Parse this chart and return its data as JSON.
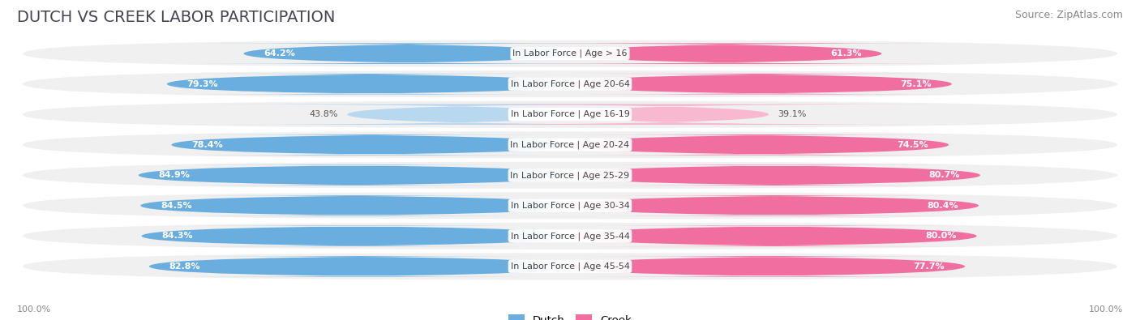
{
  "title": "DUTCH VS CREEK LABOR PARTICIPATION",
  "source": "Source: ZipAtlas.com",
  "categories": [
    "In Labor Force | Age > 16",
    "In Labor Force | Age 20-64",
    "In Labor Force | Age 16-19",
    "In Labor Force | Age 20-24",
    "In Labor Force | Age 25-29",
    "In Labor Force | Age 30-34",
    "In Labor Force | Age 35-44",
    "In Labor Force | Age 45-54"
  ],
  "dutch_values": [
    64.2,
    79.3,
    43.8,
    78.4,
    84.9,
    84.5,
    84.3,
    82.8
  ],
  "creek_values": [
    61.3,
    75.1,
    39.1,
    74.5,
    80.7,
    80.4,
    80.0,
    77.7
  ],
  "dutch_color": "#6aaee0",
  "dutch_color_light": "#b8d8f0",
  "creek_color": "#f06fa0",
  "creek_color_light": "#f8b8d0",
  "background_color": "#ffffff",
  "row_bg_color": "#f0f0f0",
  "max_value": 100.0,
  "legend_dutch": "Dutch",
  "legend_creek": "Creek",
  "title_fontsize": 14,
  "source_fontsize": 9,
  "label_fontsize": 8,
  "value_fontsize": 8
}
